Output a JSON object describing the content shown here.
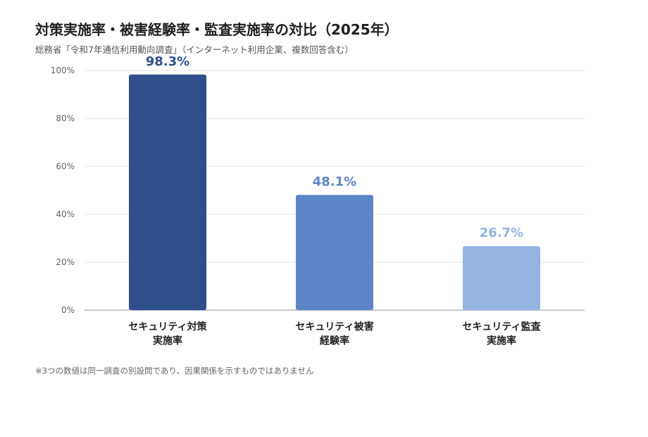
{
  "title": "対策実施率・被害経験率・監査実施率の対比（2025年）",
  "subtitle": "総務省「令和7年通信利用動向調査」（インターネット利用企業、複数回答含む）",
  "footnote": "※3つの数値は同一調査の別設問であり、因果関係を示すものではありません",
  "chart_data": {
    "type": "bar",
    "title": "対策実施率・被害経験率・監査実施率の対比（2025年）",
    "categories": [
      [
        "セキュリティ対策",
        "実施率"
      ],
      [
        "セキュリティ被害",
        "経験率"
      ],
      [
        "セキュリティ監査",
        "実施率"
      ]
    ],
    "values": [
      98.3,
      48.1,
      26.7
    ],
    "value_labels": [
      "98.3%",
      "48.1%",
      "26.7%"
    ],
    "bar_colors": [
      "#2e4f8c",
      "#5c85c8",
      "#94b4e0"
    ],
    "ylim": [
      0,
      100
    ],
    "yticks": [
      0,
      20,
      40,
      60,
      80,
      100
    ],
    "ytick_labels": [
      "0%",
      "20%",
      "40%",
      "60%",
      "80%",
      "100%"
    ],
    "grid": true,
    "xlabel": "",
    "ylabel": ""
  }
}
